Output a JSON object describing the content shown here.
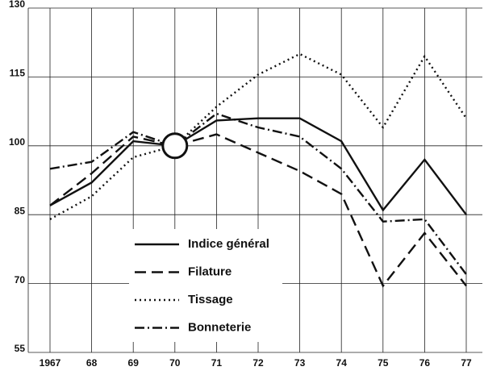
{
  "chart_data": {
    "type": "line",
    "categories": [
      "1967",
      "68",
      "69",
      "70",
      "71",
      "72",
      "73",
      "74",
      "75",
      "76",
      "77"
    ],
    "series": [
      {
        "name": "Indice général",
        "color": "#111111",
        "style": "solid",
        "values": [
          87,
          92,
          101,
          100,
          105.5,
          106,
          106,
          101,
          86,
          97,
          85
        ]
      },
      {
        "name": "Filature",
        "color": "#111111",
        "style": "dashed",
        "values": [
          87,
          94,
          102,
          100,
          102.5,
          98.5,
          94.5,
          89.5,
          69.5,
          81,
          69.5
        ]
      },
      {
        "name": "Tissage",
        "color": "#111111",
        "style": "dotted",
        "values": [
          84,
          89,
          97.5,
          100,
          108.5,
          115.5,
          120,
          115.5,
          104,
          119.5,
          106
        ]
      },
      {
        "name": "Bonneterie",
        "color": "#111111",
        "style": "dashdot",
        "values": [
          95,
          96.5,
          103,
          100,
          107,
          104,
          102,
          95,
          83.5,
          84,
          72
        ]
      }
    ],
    "ylim": [
      55,
      130
    ],
    "yticks": [
      55,
      70,
      85,
      100,
      115,
      130
    ],
    "grid": true
  }
}
